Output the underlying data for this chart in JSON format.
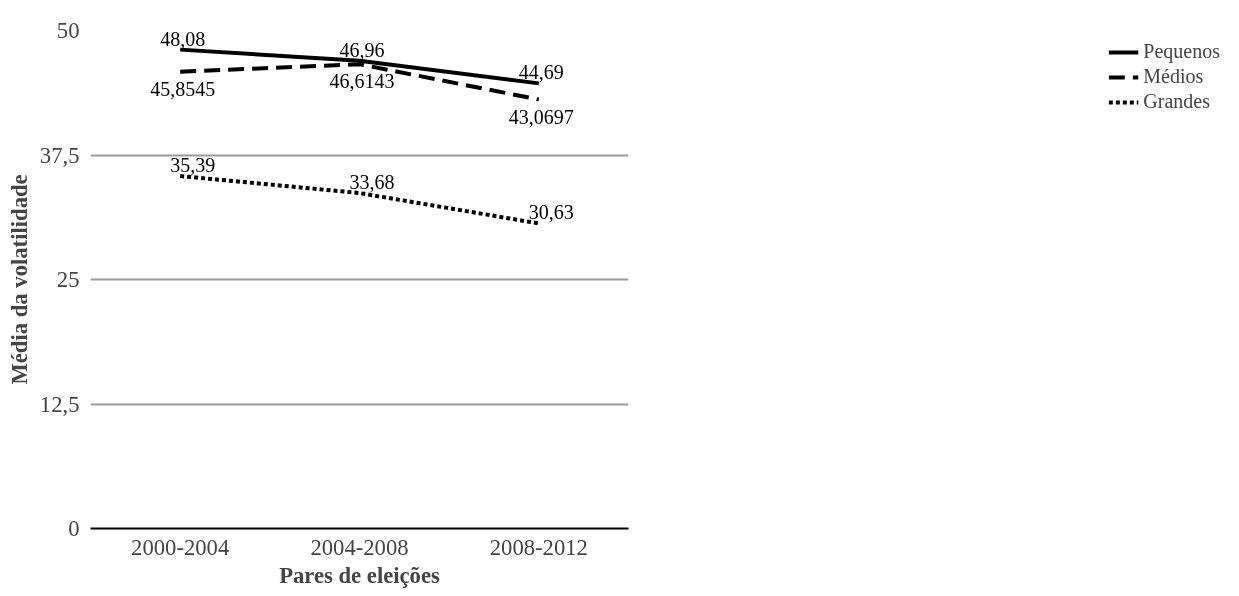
{
  "chart_data": {
    "type": "line",
    "xlabel": "Pares de eleições",
    "ylabel": "Média da volatilidade",
    "categories": [
      "2000-2004",
      "2004-2008",
      "2008-2012"
    ],
    "series": [
      {
        "name": "Pequenos",
        "color": "#000000",
        "line_style": "solid",
        "values": [
          48.08,
          46.96,
          44.69
        ],
        "value_labels": [
          "48,08",
          "46,96",
          "44,69"
        ]
      },
      {
        "name": "Médios",
        "color": "#000000",
        "line_style": "dashed",
        "values": [
          45.8545,
          46.6143,
          43.0697
        ],
        "value_labels": [
          "45,8545",
          "46,6143",
          "43,0697"
        ]
      },
      {
        "name": "Grandes",
        "color": "#000000",
        "line_style": "dotted",
        "values": [
          35.39,
          33.68,
          30.63
        ],
        "value_labels": [
          "35,39",
          "33,68",
          "30,63"
        ]
      }
    ],
    "ylim": [
      0,
      50
    ],
    "yticks": [
      0,
      {
        "value": 12.5,
        "label": "12,5"
      },
      25,
      {
        "value": 37.5,
        "label": "37,5"
      },
      50
    ],
    "grid": "y",
    "legend": "right",
    "marker": "none"
  }
}
